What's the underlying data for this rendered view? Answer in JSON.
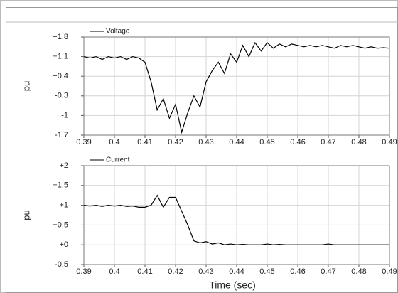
{
  "chart_data": [
    {
      "type": "line",
      "series": [
        {
          "name": "Voltage",
          "color": "#000000",
          "values": [
            1.1,
            1.05,
            1.1,
            1.0,
            1.1,
            1.05,
            1.1,
            1.0,
            1.1,
            1.05,
            0.9,
            0.2,
            -0.8,
            -0.4,
            -1.1,
            -0.6,
            -1.6,
            -0.9,
            -0.3,
            -0.7,
            0.2,
            0.6,
            0.9,
            0.5,
            1.2,
            0.9,
            1.5,
            1.1,
            1.6,
            1.3,
            1.6,
            1.4,
            1.55,
            1.45,
            1.55,
            1.5,
            1.45,
            1.5,
            1.45,
            1.5,
            1.45,
            1.4,
            1.5,
            1.45,
            1.5,
            1.45,
            1.4,
            1.45,
            1.4,
            1.42,
            1.4
          ]
        }
      ],
      "x": [
        0.39,
        0.392,
        0.394,
        0.396,
        0.398,
        0.4,
        0.402,
        0.404,
        0.406,
        0.408,
        0.41,
        0.412,
        0.414,
        0.416,
        0.418,
        0.42,
        0.422,
        0.424,
        0.426,
        0.428,
        0.43,
        0.432,
        0.434,
        0.436,
        0.438,
        0.44,
        0.442,
        0.444,
        0.446,
        0.448,
        0.45,
        0.452,
        0.454,
        0.456,
        0.458,
        0.46,
        0.462,
        0.464,
        0.466,
        0.468,
        0.47,
        0.472,
        0.474,
        0.476,
        0.478,
        0.48,
        0.482,
        0.484,
        0.486,
        0.488,
        0.49
      ],
      "y_label": "pu",
      "xlim": [
        0.39,
        0.49
      ],
      "xticks": [
        0.39,
        0.4,
        0.41,
        0.42,
        0.43,
        0.44,
        0.45,
        0.46,
        0.47,
        0.48,
        0.49
      ],
      "ylim": [
        -1.7,
        1.8
      ],
      "yticks": [
        {
          "value": 1.8,
          "label": "+1.8"
        },
        {
          "value": 1.1,
          "label": "+1.1"
        },
        {
          "value": 0.4,
          "label": "+0.4"
        },
        -0.3,
        -1,
        -1.7
      ],
      "grid": true
    },
    {
      "type": "line",
      "series": [
        {
          "name": "Current",
          "color": "#000000",
          "values": [
            1.0,
            0.98,
            1.0,
            0.97,
            1.0,
            0.98,
            1.0,
            0.97,
            0.98,
            0.95,
            0.95,
            1.0,
            1.25,
            0.95,
            1.2,
            1.2,
            0.85,
            0.5,
            0.1,
            0.05,
            0.08,
            0.02,
            0.05,
            0.0,
            0.02,
            0.0,
            0.01,
            0.0,
            0.0,
            0.0,
            0.02,
            0.0,
            0.01,
            0.0,
            0.0,
            0.0,
            0.0,
            0.0,
            0.0,
            0.0,
            0.02,
            0.0,
            0.0,
            0.0,
            0.0,
            0.0,
            0.0,
            0.0,
            0.0,
            0.0,
            0.0
          ]
        }
      ],
      "x": [
        0.39,
        0.392,
        0.394,
        0.396,
        0.398,
        0.4,
        0.402,
        0.404,
        0.406,
        0.408,
        0.41,
        0.412,
        0.414,
        0.416,
        0.418,
        0.42,
        0.422,
        0.424,
        0.426,
        0.428,
        0.43,
        0.432,
        0.434,
        0.436,
        0.438,
        0.44,
        0.442,
        0.444,
        0.446,
        0.448,
        0.45,
        0.452,
        0.454,
        0.456,
        0.458,
        0.46,
        0.462,
        0.464,
        0.466,
        0.468,
        0.47,
        0.472,
        0.474,
        0.476,
        0.478,
        0.48,
        0.482,
        0.484,
        0.486,
        0.488,
        0.49
      ],
      "y_label": "pu",
      "x_label": "Time (sec)",
      "xlim": [
        0.39,
        0.49
      ],
      "xticks": [
        0.39,
        0.4,
        0.41,
        0.42,
        0.43,
        0.44,
        0.45,
        0.46,
        0.47,
        0.48,
        0.49
      ],
      "ylim": [
        -0.5,
        2
      ],
      "yticks": [
        {
          "value": 2,
          "label": "+2"
        },
        {
          "value": 1.5,
          "label": "+1.5"
        },
        {
          "value": 1,
          "label": "+1"
        },
        {
          "value": 0.5,
          "label": "+0.5"
        },
        {
          "value": 0,
          "label": "+0"
        },
        -0.5
      ],
      "grid": true
    }
  ]
}
